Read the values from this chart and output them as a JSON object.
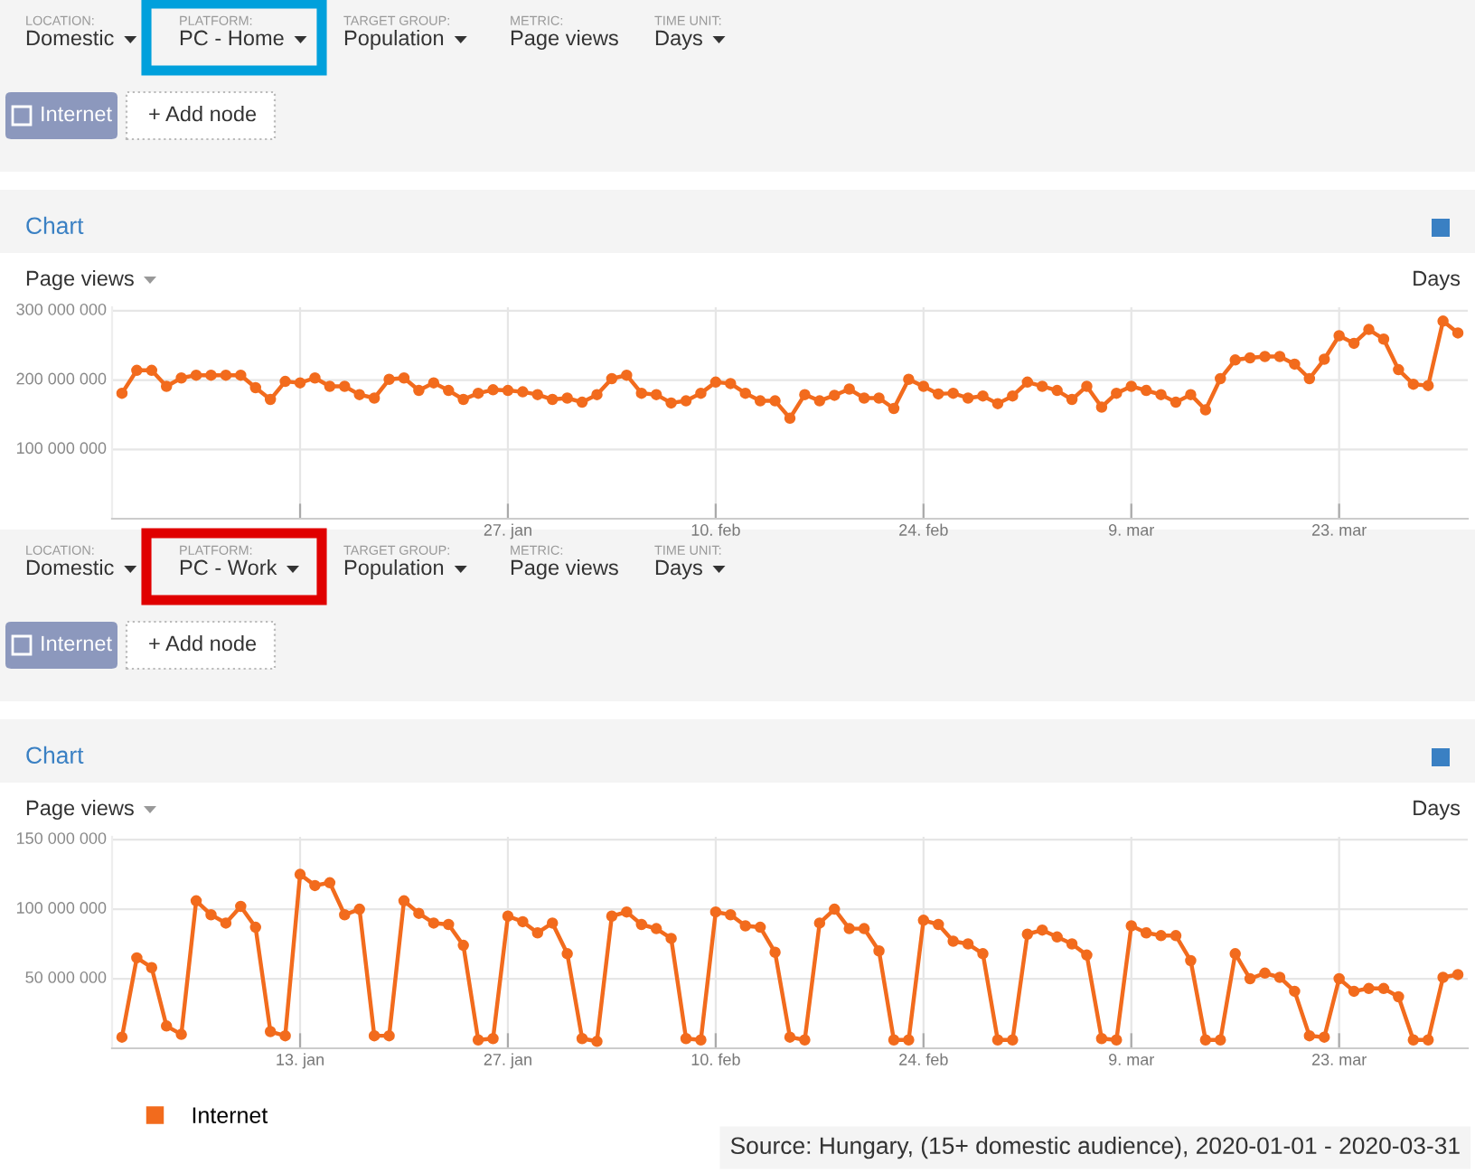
{
  "chart_data": [
    {
      "type": "line",
      "title": "Chart",
      "annotations": [
        "LOCATION:",
        "Domestic",
        "PLATFORM:",
        "PC - Home",
        "TARGET GROUP:",
        "Population",
        "METRIC:",
        "Page views",
        "TIME UNIT:",
        "Days",
        "Internet",
        "+ Add node",
        "Page views",
        "Days"
      ],
      "x": [
        "2020-01-01",
        "2020-01-02",
        "2020-01-03",
        "2020-01-04",
        "2020-01-05",
        "2020-01-06",
        "2020-01-07",
        "2020-01-08",
        "2020-01-09",
        "2020-01-10",
        "2020-01-11",
        "2020-01-12",
        "2020-01-13",
        "2020-01-14",
        "2020-01-15",
        "2020-01-16",
        "2020-01-17",
        "2020-01-18",
        "2020-01-19",
        "2020-01-20",
        "2020-01-21",
        "2020-01-22",
        "2020-01-23",
        "2020-01-24",
        "2020-01-25",
        "2020-01-26",
        "2020-01-27",
        "2020-01-28",
        "2020-01-29",
        "2020-01-30",
        "2020-01-31",
        "2020-02-01",
        "2020-02-02",
        "2020-02-03",
        "2020-02-04",
        "2020-02-05",
        "2020-02-06",
        "2020-02-07",
        "2020-02-08",
        "2020-02-09",
        "2020-02-10",
        "2020-02-11",
        "2020-02-12",
        "2020-02-13",
        "2020-02-14",
        "2020-02-15",
        "2020-02-16",
        "2020-02-17",
        "2020-02-18",
        "2020-02-19",
        "2020-02-20",
        "2020-02-21",
        "2020-02-22",
        "2020-02-23",
        "2020-02-24",
        "2020-02-25",
        "2020-02-26",
        "2020-02-27",
        "2020-02-28",
        "2020-02-29",
        "2020-03-01",
        "2020-03-02",
        "2020-03-03",
        "2020-03-04",
        "2020-03-05",
        "2020-03-06",
        "2020-03-07",
        "2020-03-08",
        "2020-03-09",
        "2020-03-10",
        "2020-03-11",
        "2020-03-12",
        "2020-03-13",
        "2020-03-14",
        "2020-03-15",
        "2020-03-16",
        "2020-03-17",
        "2020-03-18",
        "2020-03-19",
        "2020-03-20",
        "2020-03-21",
        "2020-03-22",
        "2020-03-23",
        "2020-03-24",
        "2020-03-25",
        "2020-03-26",
        "2020-03-27",
        "2020-03-28",
        "2020-03-29",
        "2020-03-30",
        "2020-03-31"
      ],
      "series": [
        {
          "color": "#f26b1d",
          "values": [
            181000000,
            214000000,
            214000000,
            191000000,
            203000000,
            207000000,
            207000000,
            207000000,
            207000000,
            189000000,
            172000000,
            198000000,
            196000000,
            203000000,
            191000000,
            191000000,
            179000000,
            174000000,
            201000000,
            203000000,
            185000000,
            196000000,
            185000000,
            172000000,
            181000000,
            186000000,
            185000000,
            183000000,
            179000000,
            172000000,
            174000000,
            168000000,
            179000000,
            202000000,
            207000000,
            181000000,
            179000000,
            167000000,
            170000000,
            181000000,
            197000000,
            195000000,
            181000000,
            170000000,
            170000000,
            145000000,
            179000000,
            170000000,
            178000000,
            187000000,
            174000000,
            174000000,
            159000000,
            201000000,
            191000000,
            180000000,
            181000000,
            174000000,
            177000000,
            166000000,
            177000000,
            197000000,
            191000000,
            185000000,
            172000000,
            191000000,
            161000000,
            181000000,
            191000000,
            185000000,
            179000000,
            168000000,
            179000000,
            157000000,
            202000000,
            229000000,
            232000000,
            234000000,
            234000000,
            223000000,
            202000000,
            230000000,
            264000000,
            253000000,
            273000000,
            259000000,
            215000000,
            194000000,
            192000000,
            285000000,
            268000000
          ]
        }
      ],
      "xlim": [
        "2019-12-31T08:00",
        "2020-03-31T16:00"
      ],
      "xticks": [
        {
          "value": "2020-01-13",
          "label": null
        },
        {
          "value": "2020-01-27",
          "label": "27. jan"
        },
        {
          "value": "2020-02-10",
          "label": "10. feb"
        },
        {
          "value": "2020-02-24",
          "label": "24. feb"
        },
        {
          "value": "2020-03-09",
          "label": "9. mar"
        },
        {
          "value": "2020-03-23",
          "label": "23. mar"
        }
      ],
      "ylim": [
        0,
        305000000
      ],
      "yticks": [
        {
          "value": 100000000,
          "label": "100 000 000"
        },
        {
          "value": 200000000,
          "label": "200 000 000"
        },
        {
          "value": 300000000,
          "label": "300 000 000"
        }
      ],
      "grid": true,
      "marker": "circle",
      "line_style": "solid"
    },
    {
      "type": "line",
      "title": "Chart",
      "annotations": [
        "LOCATION:",
        "Domestic",
        "PLATFORM:",
        "PC - Work",
        "TARGET GROUP:",
        "Population",
        "METRIC:",
        "Page views",
        "TIME UNIT:",
        "Days",
        "Internet",
        "+ Add node",
        "Page views",
        "Days",
        "Source: Hungary, (15+ domestic audience), 2020-01-01 - 2020-03-31"
      ],
      "x": [
        "2020-01-01",
        "2020-01-02",
        "2020-01-03",
        "2020-01-04",
        "2020-01-05",
        "2020-01-06",
        "2020-01-07",
        "2020-01-08",
        "2020-01-09",
        "2020-01-10",
        "2020-01-11",
        "2020-01-12",
        "2020-01-13",
        "2020-01-14",
        "2020-01-15",
        "2020-01-16",
        "2020-01-17",
        "2020-01-18",
        "2020-01-19",
        "2020-01-20",
        "2020-01-21",
        "2020-01-22",
        "2020-01-23",
        "2020-01-24",
        "2020-01-25",
        "2020-01-26",
        "2020-01-27",
        "2020-01-28",
        "2020-01-29",
        "2020-01-30",
        "2020-01-31",
        "2020-02-01",
        "2020-02-02",
        "2020-02-03",
        "2020-02-04",
        "2020-02-05",
        "2020-02-06",
        "2020-02-07",
        "2020-02-08",
        "2020-02-09",
        "2020-02-10",
        "2020-02-11",
        "2020-02-12",
        "2020-02-13",
        "2020-02-14",
        "2020-02-15",
        "2020-02-16",
        "2020-02-17",
        "2020-02-18",
        "2020-02-19",
        "2020-02-20",
        "2020-02-21",
        "2020-02-22",
        "2020-02-23",
        "2020-02-24",
        "2020-02-25",
        "2020-02-26",
        "2020-02-27",
        "2020-02-28",
        "2020-02-29",
        "2020-03-01",
        "2020-03-02",
        "2020-03-03",
        "2020-03-04",
        "2020-03-05",
        "2020-03-06",
        "2020-03-07",
        "2020-03-08",
        "2020-03-09",
        "2020-03-10",
        "2020-03-11",
        "2020-03-12",
        "2020-03-13",
        "2020-03-14",
        "2020-03-15",
        "2020-03-16",
        "2020-03-17",
        "2020-03-18",
        "2020-03-19",
        "2020-03-20",
        "2020-03-21",
        "2020-03-22",
        "2020-03-23",
        "2020-03-24",
        "2020-03-25",
        "2020-03-26",
        "2020-03-27",
        "2020-03-28",
        "2020-03-29",
        "2020-03-30",
        "2020-03-31"
      ],
      "series": [
        {
          "name": "Internet",
          "color": "#f26b1d",
          "values": [
            8000000,
            65000000,
            58000000,
            16000000,
            10000000,
            106000000,
            96000000,
            90000000,
            102000000,
            87000000,
            12000000,
            9000000,
            125000000,
            117000000,
            119000000,
            96000000,
            100000000,
            9000000,
            9000000,
            106000000,
            97000000,
            90000000,
            89000000,
            74000000,
            6000000,
            7000000,
            95000000,
            91000000,
            83000000,
            90000000,
            68000000,
            7000000,
            5000000,
            95000000,
            98000000,
            89000000,
            86000000,
            79000000,
            7000000,
            6000000,
            98000000,
            96000000,
            88000000,
            87000000,
            69000000,
            8000000,
            6000000,
            90000000,
            100000000,
            86000000,
            86000000,
            70000000,
            6000000,
            6000000,
            92000000,
            89000000,
            77000000,
            75000000,
            68000000,
            6000000,
            6000000,
            82000000,
            85000000,
            80000000,
            75000000,
            67000000,
            7000000,
            6000000,
            88000000,
            83000000,
            81000000,
            81000000,
            63000000,
            6000000,
            6000000,
            68000000,
            50000000,
            54000000,
            51000000,
            41000000,
            9000000,
            8000000,
            50000000,
            41000000,
            43000000,
            43000000,
            37000000,
            6000000,
            6000000,
            51000000,
            53000000
          ]
        }
      ],
      "xlim": [
        "2019-12-31T08:00",
        "2020-03-31T16:00"
      ],
      "xticks": [
        {
          "value": "2020-01-13",
          "label": "13. jan"
        },
        {
          "value": "2020-01-27",
          "label": "27. jan"
        },
        {
          "value": "2020-02-10",
          "label": "10. feb"
        },
        {
          "value": "2020-02-24",
          "label": "24. feb"
        },
        {
          "value": "2020-03-09",
          "label": "9. mar"
        },
        {
          "value": "2020-03-23",
          "label": "23. mar"
        }
      ],
      "ylim": [
        0,
        152000000
      ],
      "yticks": [
        {
          "value": 50000000,
          "label": "50 000 000"
        },
        {
          "value": 100000000,
          "label": "100 000 000"
        },
        {
          "value": 150000000,
          "label": "150 000 000"
        }
      ],
      "grid": true,
      "legend": "bottom",
      "marker": "circle",
      "line_style": "solid"
    }
  ]
}
